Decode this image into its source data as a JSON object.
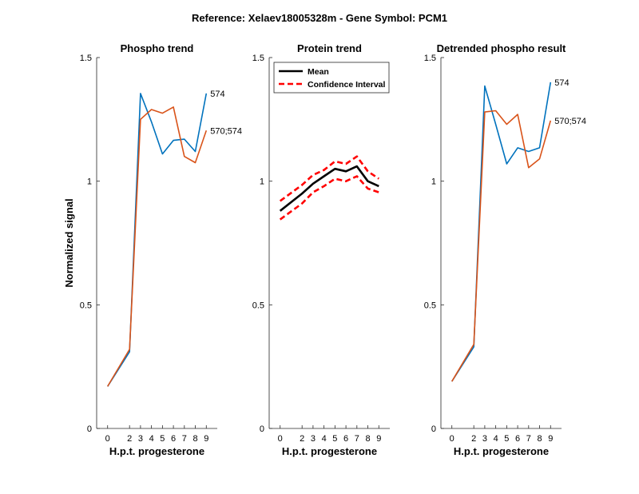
{
  "figure": {
    "title": "Reference:  Xelaev18005328m - Gene Symbol:  PCM1"
  },
  "chart_data": [
    {
      "type": "line",
      "title": "Phospho trend",
      "xlabel": "H.p.t. progesterone",
      "ylabel": "Normalized signal",
      "x": [
        0,
        2,
        3,
        4,
        5,
        6,
        7,
        8,
        9
      ],
      "xticks": [
        "0",
        "2",
        "3",
        "4",
        "5",
        "6",
        "7",
        "8",
        "9"
      ],
      "ylim": [
        0,
        1.5
      ],
      "yticks": [
        "0",
        "0.5",
        "1",
        "1.5"
      ],
      "series": [
        {
          "name": "574",
          "color": "#0072BD",
          "values": [
            0.17,
            0.31,
            1.355,
            1.24,
            1.11,
            1.165,
            1.17,
            1.12,
            1.355
          ]
        },
        {
          "name": "570;574",
          "color": "#D95319",
          "values": [
            0.17,
            0.32,
            1.25,
            1.29,
            1.275,
            1.3,
            1.1,
            1.075,
            1.205
          ]
        }
      ]
    },
    {
      "type": "line",
      "title": "Protein trend",
      "xlabel": "H.p.t. progesterone",
      "ylabel": "",
      "x": [
        0,
        2,
        3,
        4,
        5,
        6,
        7,
        8,
        9
      ],
      "xticks": [
        "0",
        "2",
        "3",
        "4",
        "5",
        "6",
        "7",
        "8",
        "9"
      ],
      "ylim": [
        0,
        1.5
      ],
      "yticks": [
        "0",
        "0.5",
        "1",
        "1.5"
      ],
      "legend": {
        "placement": "top-left",
        "entries": [
          "Mean",
          "Confidence Interval"
        ]
      },
      "series": [
        {
          "name": "Mean",
          "color": "#000000",
          "style": "solid",
          "values": [
            0.88,
            0.95,
            0.99,
            1.02,
            1.05,
            1.04,
            1.06,
            1.0,
            0.98
          ]
        },
        {
          "name": "Confidence Interval",
          "color": "#FF0000",
          "style": "dashed",
          "values": [
            0.92,
            0.985,
            1.025,
            1.045,
            1.08,
            1.07,
            1.1,
            1.04,
            1.01
          ]
        },
        {
          "name": "Confidence Interval",
          "color": "#FF0000",
          "style": "dashed",
          "values": [
            0.845,
            0.91,
            0.955,
            0.98,
            1.01,
            1.0,
            1.02,
            0.97,
            0.955
          ]
        }
      ]
    },
    {
      "type": "line",
      "title": "Detrended phospho result",
      "xlabel": "H.p.t. progesterone",
      "ylabel": "",
      "x": [
        0,
        2,
        3,
        4,
        5,
        6,
        7,
        8,
        9
      ],
      "xticks": [
        "0",
        "2",
        "3",
        "4",
        "5",
        "6",
        "7",
        "8",
        "9"
      ],
      "ylim": [
        0,
        1.5
      ],
      "yticks": [
        "0",
        "0.5",
        "1",
        "1.5"
      ],
      "series": [
        {
          "name": "574",
          "color": "#0072BD",
          "values": [
            0.19,
            0.33,
            1.385,
            1.23,
            1.07,
            1.135,
            1.12,
            1.135,
            1.4
          ]
        },
        {
          "name": "570;574",
          "color": "#D95319",
          "values": [
            0.19,
            0.34,
            1.28,
            1.285,
            1.23,
            1.27,
            1.055,
            1.09,
            1.245
          ]
        }
      ]
    }
  ]
}
